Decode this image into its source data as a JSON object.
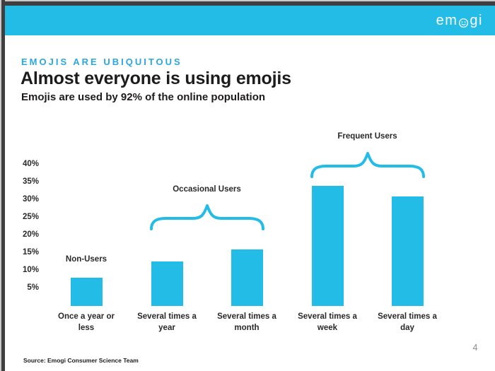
{
  "header": {
    "logo_pre": "em",
    "logo_post": "gi"
  },
  "slide": {
    "eyebrow": "EMOJIS ARE UBIQUITOUS",
    "title": "Almost everyone is using emojis",
    "subtitle": "Emojis are used by 92% of the online population",
    "source": "Source: Emogi Consumer Science Team",
    "page_number": "4"
  },
  "colors": {
    "accent_cyan": "#22bce6",
    "eyebrow_blue": "#2ba7dd",
    "text_dark": "#1e1b1b",
    "page_number_gray": "#8c8c8c",
    "frame_dark": "#3f3f3f"
  },
  "chart_data": {
    "type": "bar",
    "title": "",
    "xlabel": "",
    "ylabel": "",
    "unit": "%",
    "categories": [
      "Once a year or less",
      "Several times a year",
      "Several times a month",
      "Several times a week",
      "Several times a day"
    ],
    "values": [
      8,
      12.5,
      16,
      34,
      31
    ],
    "y_ticks": [
      5,
      10,
      15,
      20,
      25,
      30,
      35,
      40
    ],
    "ylim": [
      0,
      43
    ],
    "grid": false,
    "legend": false,
    "annotations": [
      {
        "label": "Non-Users",
        "bars": [
          0
        ],
        "brace": false
      },
      {
        "label": "Occasional Users",
        "bars": [
          1,
          2
        ],
        "brace": true
      },
      {
        "label": "Frequent Users",
        "bars": [
          3,
          4
        ],
        "brace": true
      }
    ]
  }
}
